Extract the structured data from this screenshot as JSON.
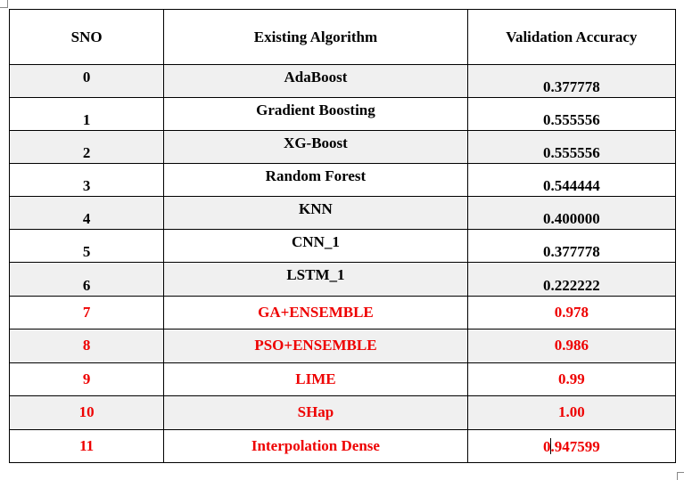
{
  "table": {
    "headers": [
      "SNO",
      "Existing Algorithm",
      "Validation Accuracy"
    ],
    "rows": [
      {
        "sno": "0",
        "algorithm": "AdaBoost",
        "accuracy": "0.377778"
      },
      {
        "sno": "1",
        "algorithm": "Gradient Boosting",
        "accuracy": "0.555556"
      },
      {
        "sno": "2",
        "algorithm": "XG-Boost",
        "accuracy": "0.555556"
      },
      {
        "sno": "3",
        "algorithm": "Random Forest",
        "accuracy": "0.544444"
      },
      {
        "sno": "4",
        "algorithm": "KNN",
        "accuracy": "0.400000"
      },
      {
        "sno": "5",
        "algorithm": "CNN_1",
        "accuracy": "0.377778"
      },
      {
        "sno": "6",
        "algorithm": "LSTM_1",
        "accuracy": "0.222222"
      },
      {
        "sno": "7",
        "algorithm": "GA+ENSEMBLE",
        "accuracy": "0.978"
      },
      {
        "sno": "8",
        "algorithm": "PSO+ENSEMBLE",
        "accuracy": "0.986"
      },
      {
        "sno": "9",
        "algorithm": "LIME",
        "accuracy": "0.99"
      },
      {
        "sno": "10",
        "algorithm": "SHap",
        "accuracy": "1.00"
      },
      {
        "sno": "11",
        "algorithm": "Interpolation Dense",
        "accuracy": "0.947599"
      }
    ]
  },
  "colors": {
    "highlight_text": "#ee0000",
    "row_shading": "#f0f0f0"
  }
}
